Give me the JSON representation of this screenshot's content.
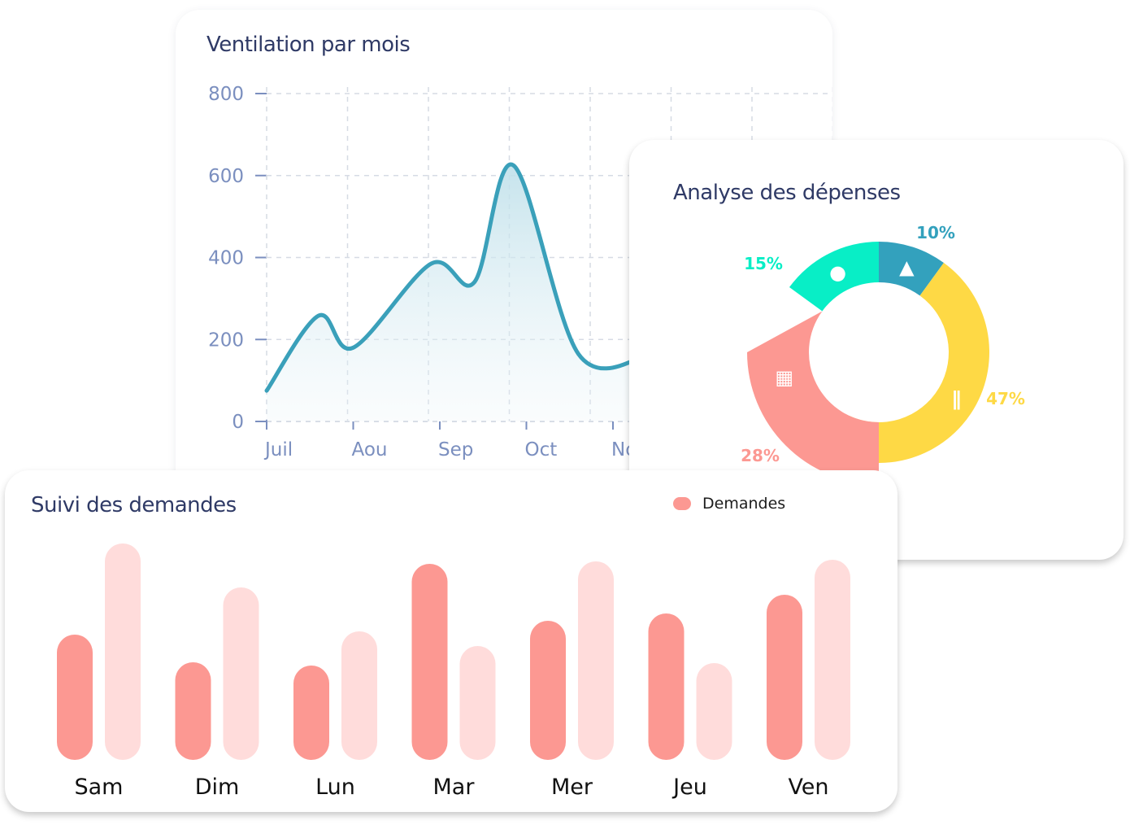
{
  "colors": {
    "line": "#3aa0ba",
    "axis_text": "#7b8fbf",
    "grid": "#d6dbe4",
    "pie_teal": "#08eec6",
    "pie_blue": "#33a1bd",
    "pie_yellow": "#fed945",
    "pie_red": "#fc9892",
    "bar_dark": "#fc9892",
    "bar_light": "#ffdcdb"
  },
  "chart_data": [
    {
      "type": "area",
      "title": "Ventilation par mois",
      "categories": [
        "Juil",
        "Aou",
        "Sep",
        "Oct",
        "No"
      ],
      "x": [
        0,
        0.6,
        1,
        1.9,
        2.4,
        2.85,
        3.6,
        4.4
      ],
      "values": [
        75,
        258,
        180,
        385,
        340,
        625,
        165,
        160
      ],
      "ylim": [
        0,
        800
      ],
      "yticks": [
        "800",
        "600",
        "400",
        "200",
        "0"
      ],
      "grid": true
    },
    {
      "type": "pie",
      "title": "Analyse des dépenses",
      "slices": [
        {
          "label": "10%",
          "value": 10,
          "icon": "bell-icon",
          "color": "#33a1bd"
        },
        {
          "label": "47%",
          "value": 47,
          "icon": "utensils-icon",
          "color": "#fed945"
        },
        {
          "label": "28%",
          "value": 28,
          "icon": "building-icon",
          "color": "#fc9892"
        },
        {
          "label": "15%",
          "value": 15,
          "icon": "ping-pong-icon",
          "color": "#08eec6"
        }
      ]
    },
    {
      "type": "bar",
      "title": "Suivi des demandes",
      "legend": "Demandes",
      "categories": [
        "Sam",
        "Dim",
        "Lun",
        "Mar",
        "Mer",
        "Jeu",
        "Ven"
      ],
      "series": [
        {
          "name": "Demandes",
          "values": [
            154,
            120,
            116,
            241,
            171,
            180,
            203
          ]
        },
        {
          "values": [
            266,
            212,
            158,
            140,
            244,
            119,
            246
          ]
        }
      ],
      "ylim": [
        0,
        266
      ]
    }
  ]
}
